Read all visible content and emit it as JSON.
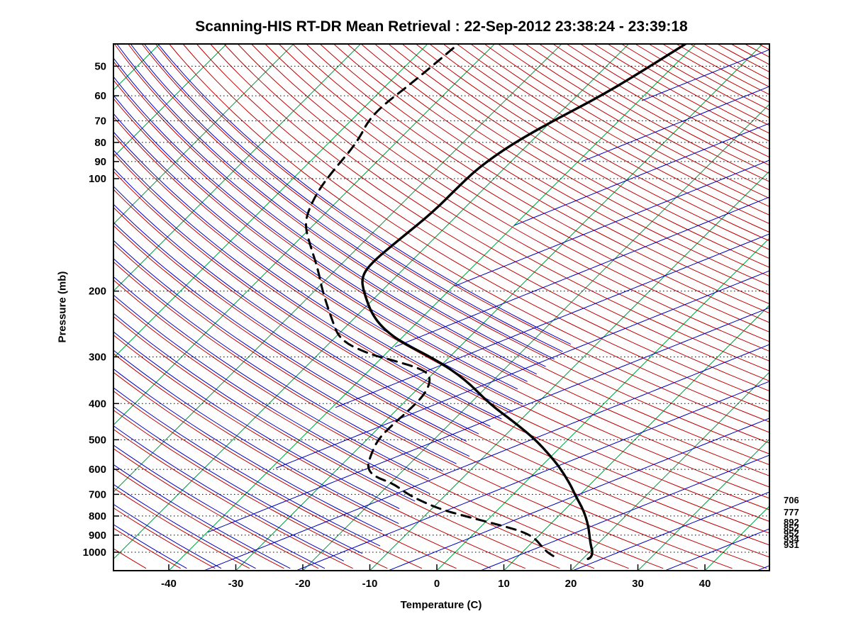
{
  "title": "Scanning-HIS RT-DR Mean Retrieval : 22-Sep-2012 23:38:24 - 23:39:18",
  "chart_data": {
    "type": "line",
    "variant": "skewT-logP-sounding",
    "xlabel": "Temperature (C)",
    "ylabel": "Pressure (mb)",
    "x_ticks": [
      -40,
      -30,
      -20,
      -10,
      0,
      10,
      20,
      30,
      40
    ],
    "y_ticks": [
      50,
      60,
      70,
      80,
      90,
      100,
      200,
      300,
      400,
      500,
      600,
      700,
      800,
      900,
      1000
    ],
    "xlim_C": [
      -48,
      50
    ],
    "ylim_mb": [
      44,
      1120
    ],
    "grid": {
      "style": "dotted",
      "color": "#000000"
    },
    "series": [
      {
        "name": "temperature",
        "style": "solid",
        "color": "#000000",
        "points": [
          [
            42,
            -41.0
          ],
          [
            52,
            -44.0
          ],
          [
            61,
            -46.7
          ],
          [
            70,
            -49.8
          ],
          [
            81,
            -52.5
          ],
          [
            93,
            -53.9
          ],
          [
            104,
            -54.1
          ],
          [
            123,
            -54.1
          ],
          [
            147,
            -55.1
          ],
          [
            168,
            -55.7
          ],
          [
            183,
            -55.1
          ],
          [
            200,
            -52.7
          ],
          [
            238,
            -46.9
          ],
          [
            271,
            -40.3
          ],
          [
            303,
            -32.1
          ],
          [
            344,
            -24.4
          ],
          [
            401,
            -17.0
          ],
          [
            448,
            -10.7
          ],
          [
            499,
            -4.9
          ],
          [
            557,
            0.2
          ],
          [
            603,
            3.6
          ],
          [
            663,
            7.3
          ],
          [
            708,
            9.6
          ],
          [
            756,
            12.1
          ],
          [
            804,
            14.2
          ],
          [
            862,
            16.3
          ],
          [
            908,
            17.7
          ],
          [
            962,
            19.3
          ],
          [
            1000,
            20.5
          ],
          [
            1031,
            21.0
          ],
          [
            1042,
            20.8
          ]
        ]
      },
      {
        "name": "dewpoint",
        "style": "dashed",
        "color": "#000000",
        "points": [
          [
            42,
            -75.3
          ],
          [
            54,
            -76.3
          ],
          [
            67,
            -77.9
          ],
          [
            80,
            -75.8
          ],
          [
            95,
            -75.2
          ],
          [
            108,
            -74.4
          ],
          [
            123,
            -72.8
          ],
          [
            135,
            -70.9
          ],
          [
            153,
            -67.0
          ],
          [
            175,
            -62.7
          ],
          [
            200,
            -58.8
          ],
          [
            238,
            -53.2
          ],
          [
            271,
            -48.8
          ],
          [
            295,
            -42.4
          ],
          [
            306,
            -38.1
          ],
          [
            323,
            -32.4
          ],
          [
            340,
            -29.7
          ],
          [
            376,
            -28.1
          ],
          [
            419,
            -28.1
          ],
          [
            457,
            -28.4
          ],
          [
            500,
            -28.4
          ],
          [
            557,
            -26.9
          ],
          [
            595,
            -25.7
          ],
          [
            627,
            -23.4
          ],
          [
            655,
            -19.5
          ],
          [
            693,
            -16.3
          ],
          [
            724,
            -13.3
          ],
          [
            766,
            -8.8
          ],
          [
            800,
            -4.0
          ],
          [
            832,
            0.6
          ],
          [
            862,
            4.7
          ],
          [
            889,
            7.7
          ],
          [
            920,
            9.9
          ],
          [
            962,
            11.9
          ],
          [
            1004,
            13.9
          ],
          [
            1042,
            16.4
          ]
        ]
      }
    ],
    "right_annotations": [
      {
        "text": "706",
        "y": 705
      },
      {
        "text": "777",
        "y": 722
      },
      {
        "text": "892",
        "y": 736
      },
      {
        "text": "852",
        "y": 744
      },
      {
        "text": "952",
        "y": 752
      },
      {
        "text": "934",
        "y": 760
      },
      {
        "text": "931",
        "y": 768
      }
    ],
    "background": {
      "isotherms": {
        "color": "#00A044",
        "step_C": 10,
        "min_C": -130,
        "max_C": 50
      },
      "dry_adiabats": {
        "color": "#C00000",
        "step_K": 5,
        "min_K": 218,
        "max_K": 593
      },
      "moist_adiabats": {
        "color": "#0000C0",
        "step_K": 5,
        "min_K": 228,
        "max_K": 373,
        "offset_K": 0.9,
        "max_temp_C": -12
      },
      "mixing_lines": {
        "color": "#0000C0",
        "slope": 0.4,
        "spacing_px": 52,
        "min_temp_C": -40
      }
    }
  }
}
